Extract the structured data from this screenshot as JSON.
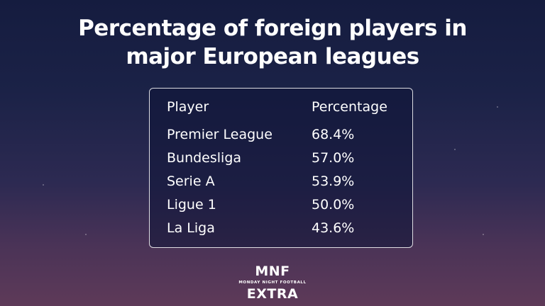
{
  "title": {
    "line1": "Percentage of foreign players in",
    "line2": "major European leagues"
  },
  "table": {
    "headers": [
      "Player",
      "Percentage"
    ],
    "rows": [
      [
        "Premier League",
        "68.4%"
      ],
      [
        "Bundesliga",
        "57.0%"
      ],
      [
        "Serie A",
        "53.9%"
      ],
      [
        "Ligue 1",
        "50.0%"
      ],
      [
        "La Liga",
        "43.6%"
      ]
    ]
  },
  "logo": {
    "top": "MNF",
    "subtitle": "MONDAY NIGHT FOOTBALL",
    "bottom": "EXTRA"
  }
}
